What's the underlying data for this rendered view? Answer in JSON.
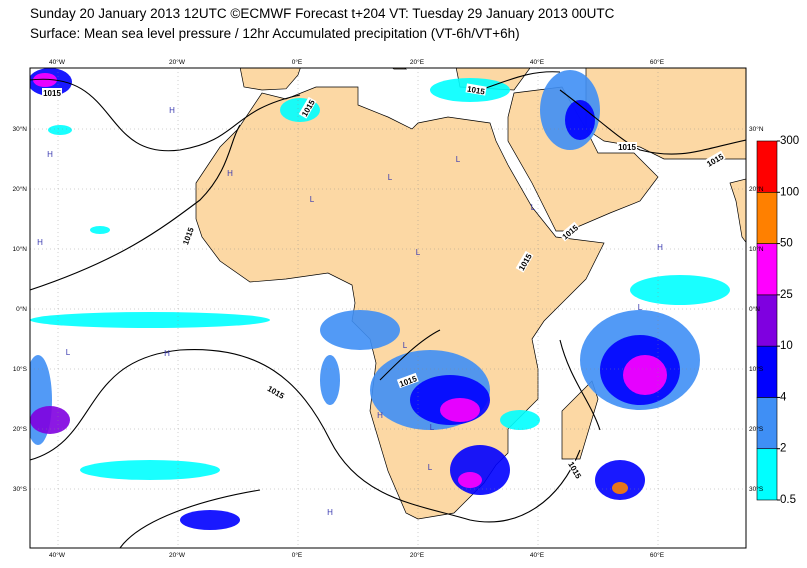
{
  "header": {
    "title": "Sunday 20 January 2013 12UTC ©ECMWF Forecast t+204 VT: Tuesday 29 January 2013 00UTC",
    "subtitle": "Surface: Mean sea level pressure / 12hr Accumulated precipitation (VT-6h/VT+6h)"
  },
  "map": {
    "lon_labels": [
      "40°W",
      "20°W",
      "0°E",
      "20°E",
      "40°E",
      "60°E"
    ],
    "lat_labels": [
      "30°N",
      "20°N",
      "10°N",
      "0°N",
      "10°S",
      "20°S",
      "30°S"
    ],
    "isobar_labels": [
      "1015",
      "1015",
      "1015",
      "1015",
      "1015",
      "1015",
      "1015",
      "1015",
      "1015",
      "1015",
      "1015"
    ],
    "pressure_centres": [
      "H",
      "H",
      "H",
      "L",
      "L",
      "L",
      "H",
      "L",
      "L",
      "H",
      "L",
      "L",
      "H",
      "L",
      "H",
      "H",
      "L",
      "L"
    ]
  },
  "colorbar": {
    "levels": [
      0.5,
      2,
      4,
      10,
      25,
      50,
      100,
      300
    ],
    "colors": [
      "#00ffff",
      "#3f8ff5",
      "#0000ff",
      "#7f00e0",
      "#ff00ff",
      "#ff8000",
      "#ff0000"
    ]
  }
}
